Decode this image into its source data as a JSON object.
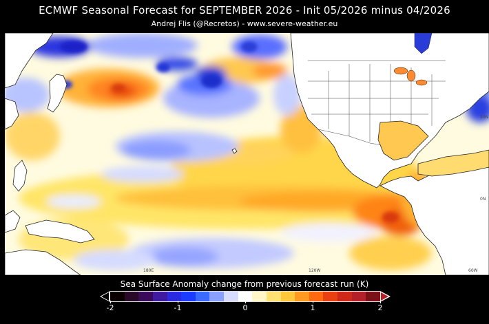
{
  "header": {
    "title": "ECMWF Seasonal Forecast for SEPTEMBER 2026   -   Init 05/2026 minus 04/2026",
    "credit": "Andrej Flis (@Recretos) - www.severe-weather.eu"
  },
  "map": {
    "grid_labels": {
      "lat_30n": "30N",
      "lat_0n": "0N",
      "lon_180e": "180E",
      "lon_120w": "120W",
      "lon_60w": "60W"
    },
    "colors": {
      "land": "#ffffff",
      "coast": "#222222",
      "neutral": "#ffffff"
    }
  },
  "legend": {
    "title": "Sea Surface Anomaly change from previous forecast run (K)",
    "ticks": [
      "-2",
      "-1",
      "0",
      "1",
      "2"
    ],
    "range": [
      -2,
      2
    ],
    "colors": [
      "#0a0000",
      "#2a0828",
      "#3a0a5a",
      "#3d1aa0",
      "#2a2ae0",
      "#1b3cff",
      "#3a6aff",
      "#8aa0ff",
      "#d6dcff",
      "#ffffff",
      "#fff7c8",
      "#ffe070",
      "#ffc83a",
      "#ff9a20",
      "#ff6a10",
      "#e84010",
      "#d02818",
      "#b4202a",
      "#7a1018"
    ]
  }
}
